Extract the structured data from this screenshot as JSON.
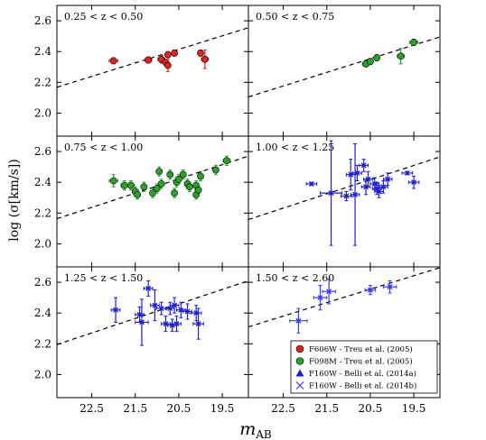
{
  "chart_data": {
    "type": "scatter",
    "xlabel": "m_AB",
    "ylabel": "log (σ[km/s])",
    "xlim": [
      23.3,
      18.9
    ],
    "ylim": [
      1.85,
      2.7
    ],
    "xticks": [
      "22.5",
      "21.5",
      "20.5",
      "19.5"
    ],
    "yticks": [
      "2.0",
      "2.2",
      "2.4",
      "2.6"
    ],
    "fit_line": {
      "style": "dashed",
      "color": "#000000"
    },
    "legend": {
      "placement": "bottom-right panel",
      "entries": [
        {
          "name": "F606W - Treu et al. (2005)",
          "marker": "circle",
          "color": "#d62728"
        },
        {
          "name": "F098M - Treu et al. (2005)",
          "marker": "circle",
          "color": "#2ca02c"
        },
        {
          "name": "F160W - Belli et al. (2014a)",
          "marker": "triangle",
          "color": "#1f1fcf"
        },
        {
          "name": "F160W - Belli et al. (2014b)",
          "marker": "x",
          "color": "#3b3bff"
        }
      ]
    },
    "panels": [
      {
        "label": "0.25 < z < 0.50",
        "line": [
          [
            23.3,
            2.168
          ],
          [
            18.9,
            2.555
          ]
        ],
        "series": [
          {
            "marker": "circle",
            "color": "#d62728",
            "points": [
              {
                "x": 22.0,
                "y": 2.34,
                "xerr": 0.1,
                "yerr": 0.02
              },
              {
                "x": 21.2,
                "y": 2.345,
                "xerr": 0.08,
                "yerr": 0.02
              },
              {
                "x": 20.9,
                "y": 2.35,
                "xerr": 0.08,
                "yerr": 0.025
              },
              {
                "x": 20.75,
                "y": 2.38,
                "xerr": 0.05,
                "yerr": 0.02
              },
              {
                "x": 20.8,
                "y": 2.33,
                "xerr": 0.05,
                "yerr": 0.02
              },
              {
                "x": 20.6,
                "y": 2.39,
                "xerr": 0.05,
                "yerr": 0.02
              },
              {
                "x": 20.75,
                "y": 2.31,
                "xerr": 0.05,
                "yerr": 0.04
              },
              {
                "x": 20.0,
                "y": 2.39,
                "xerr": 0.06,
                "yerr": 0.02
              },
              {
                "x": 19.9,
                "y": 2.35,
                "xerr": 0.08,
                "yerr": 0.06
              }
            ]
          }
        ]
      },
      {
        "label": "0.50 < z < 0.75",
        "line": [
          [
            23.3,
            2.105
          ],
          [
            18.9,
            2.495
          ]
        ],
        "series": [
          {
            "marker": "circle",
            "color": "#2ca02c",
            "points": [
              {
                "x": 20.6,
                "y": 2.32,
                "xerr": 0.08,
                "yerr": 0.02
              },
              {
                "x": 20.5,
                "y": 2.335,
                "xerr": 0.06,
                "yerr": 0.02
              },
              {
                "x": 20.35,
                "y": 2.36,
                "xerr": 0.06,
                "yerr": 0.02
              },
              {
                "x": 19.8,
                "y": 2.37,
                "xerr": 0.08,
                "yerr": 0.05
              },
              {
                "x": 19.5,
                "y": 2.46,
                "xerr": 0.1,
                "yerr": 0.02
              }
            ]
          }
        ]
      },
      {
        "label": "0.75 < z < 1.00",
        "line": [
          [
            23.3,
            2.163
          ],
          [
            18.9,
            2.57
          ]
        ],
        "series": [
          {
            "marker": "circle",
            "color": "#2ca02c",
            "points": [
              {
                "x": 22.0,
                "y": 2.41,
                "xerr": 0.1,
                "yerr": 0.04
              },
              {
                "x": 21.75,
                "y": 2.38,
                "xerr": 0.08,
                "yerr": 0.03
              },
              {
                "x": 21.6,
                "y": 2.38,
                "xerr": 0.08,
                "yerr": 0.03
              },
              {
                "x": 21.5,
                "y": 2.34,
                "xerr": 0.06,
                "yerr": 0.03
              },
              {
                "x": 21.45,
                "y": 2.32,
                "xerr": 0.06,
                "yerr": 0.03
              },
              {
                "x": 21.3,
                "y": 2.37,
                "xerr": 0.06,
                "yerr": 0.03
              },
              {
                "x": 21.1,
                "y": 2.33,
                "xerr": 0.06,
                "yerr": 0.03
              },
              {
                "x": 21.0,
                "y": 2.36,
                "xerr": 0.06,
                "yerr": 0.03
              },
              {
                "x": 20.9,
                "y": 2.39,
                "xerr": 0.06,
                "yerr": 0.03
              },
              {
                "x": 20.95,
                "y": 2.47,
                "xerr": 0.06,
                "yerr": 0.03
              },
              {
                "x": 20.7,
                "y": 2.45,
                "xerr": 0.06,
                "yerr": 0.03
              },
              {
                "x": 20.6,
                "y": 2.33,
                "xerr": 0.06,
                "yerr": 0.03
              },
              {
                "x": 20.55,
                "y": 2.4,
                "xerr": 0.06,
                "yerr": 0.03
              },
              {
                "x": 20.5,
                "y": 2.42,
                "xerr": 0.06,
                "yerr": 0.03
              },
              {
                "x": 20.4,
                "y": 2.45,
                "xerr": 0.06,
                "yerr": 0.03
              },
              {
                "x": 20.3,
                "y": 2.39,
                "xerr": 0.06,
                "yerr": 0.03
              },
              {
                "x": 20.25,
                "y": 2.37,
                "xerr": 0.06,
                "yerr": 0.03
              },
              {
                "x": 20.1,
                "y": 2.38,
                "xerr": 0.06,
                "yerr": 0.03
              },
              {
                "x": 20.0,
                "y": 2.44,
                "xerr": 0.06,
                "yerr": 0.03
              },
              {
                "x": 20.1,
                "y": 2.32,
                "xerr": 0.06,
                "yerr": 0.03
              },
              {
                "x": 20.05,
                "y": 2.35,
                "xerr": 0.06,
                "yerr": 0.03
              },
              {
                "x": 19.65,
                "y": 2.48,
                "xerr": 0.06,
                "yerr": 0.03
              },
              {
                "x": 19.4,
                "y": 2.54,
                "xerr": 0.08,
                "yerr": 0.03
              }
            ]
          }
        ]
      },
      {
        "label": "1.00 < z < 1.25",
        "line": [
          [
            23.3,
            2.158
          ],
          [
            18.9,
            2.565
          ]
        ],
        "series": [
          {
            "marker": "x",
            "color": "#1f1fcf",
            "points": [
              {
                "x": 21.85,
                "y": 2.39,
                "xerr": 0.12,
                "yerr": 0.01
              },
              {
                "x": 21.4,
                "y": 2.33,
                "xerr": 0.25,
                "yerr": 0.34
              },
              {
                "x": 21.05,
                "y": 2.31,
                "xerr": 0.12,
                "yerr": 0.03
              },
              {
                "x": 20.95,
                "y": 2.45,
                "xerr": 0.1,
                "yerr": 0.1
              },
              {
                "x": 20.85,
                "y": 2.32,
                "xerr": 0.1,
                "yerr": 0.33
              },
              {
                "x": 20.8,
                "y": 2.46,
                "xerr": 0.1,
                "yerr": 0.05
              },
              {
                "x": 20.65,
                "y": 2.51,
                "xerr": 0.1,
                "yerr": 0.04
              },
              {
                "x": 20.6,
                "y": 2.37,
                "xerr": 0.1,
                "yerr": 0.05
              },
              {
                "x": 20.55,
                "y": 2.42,
                "xerr": 0.1,
                "yerr": 0.05
              },
              {
                "x": 20.4,
                "y": 2.39,
                "xerr": 0.1,
                "yerr": 0.04
              },
              {
                "x": 20.35,
                "y": 2.36,
                "xerr": 0.1,
                "yerr": 0.04
              },
              {
                "x": 20.3,
                "y": 2.34,
                "xerr": 0.1,
                "yerr": 0.04
              },
              {
                "x": 20.2,
                "y": 2.37,
                "xerr": 0.1,
                "yerr": 0.04
              },
              {
                "x": 20.1,
                "y": 2.42,
                "xerr": 0.1,
                "yerr": 0.04
              },
              {
                "x": 19.65,
                "y": 2.46,
                "xerr": 0.12,
                "yerr": 0.01
              },
              {
                "x": 19.5,
                "y": 2.4,
                "xerr": 0.12,
                "yerr": 0.04
              }
            ]
          }
        ]
      },
      {
        "label": "1.25 < z < 1.50",
        "line": [
          [
            23.3,
            2.195
          ],
          [
            18.9,
            2.61
          ]
        ],
        "series": [
          {
            "marker": "x",
            "color": "#1f1fcf",
            "points": [
              {
                "x": 21.95,
                "y": 2.42,
                "xerr": 0.1,
                "yerr": 0.08
              },
              {
                "x": 21.4,
                "y": 2.39,
                "xerr": 0.1,
                "yerr": 0.05
              },
              {
                "x": 21.35,
                "y": 2.34,
                "xerr": 0.15,
                "yerr": 0.15
              },
              {
                "x": 21.2,
                "y": 2.56,
                "xerr": 0.1,
                "yerr": 0.05
              },
              {
                "x": 21.05,
                "y": 2.45,
                "xerr": 0.1,
                "yerr": 0.1
              },
              {
                "x": 20.9,
                "y": 2.43,
                "xerr": 0.12,
                "yerr": 0.04
              },
              {
                "x": 20.8,
                "y": 2.33,
                "xerr": 0.1,
                "yerr": 0.05
              },
              {
                "x": 20.7,
                "y": 2.43,
                "xerr": 0.1,
                "yerr": 0.04
              },
              {
                "x": 20.65,
                "y": 2.32,
                "xerr": 0.1,
                "yerr": 0.04
              },
              {
                "x": 20.6,
                "y": 2.45,
                "xerr": 0.1,
                "yerr": 0.05
              },
              {
                "x": 20.55,
                "y": 2.33,
                "xerr": 0.1,
                "yerr": 0.05
              },
              {
                "x": 20.45,
                "y": 2.42,
                "xerr": 0.1,
                "yerr": 0.05
              },
              {
                "x": 20.3,
                "y": 2.41,
                "xerr": 0.1,
                "yerr": 0.05
              },
              {
                "x": 20.1,
                "y": 2.4,
                "xerr": 0.12,
                "yerr": 0.05
              },
              {
                "x": 20.05,
                "y": 2.33,
                "xerr": 0.12,
                "yerr": 0.1
              }
            ]
          }
        ]
      },
      {
        "label": "1.50 < z < 2.60",
        "line": [
          [
            23.3,
            2.31
          ],
          [
            18.9,
            2.695
          ]
        ],
        "series": [
          {
            "marker": "x",
            "color": "#3b3bff",
            "points": [
              {
                "x": 22.15,
                "y": 2.35,
                "xerr": 0.2,
                "yerr": 0.08
              },
              {
                "x": 21.65,
                "y": 2.5,
                "xerr": 0.15,
                "yerr": 0.08
              },
              {
                "x": 21.45,
                "y": 2.54,
                "xerr": 0.15,
                "yerr": 0.08
              },
              {
                "x": 20.5,
                "y": 2.55,
                "xerr": 0.12,
                "yerr": 0.03
              },
              {
                "x": 20.05,
                "y": 2.57,
                "xerr": 0.15,
                "yerr": 0.04
              }
            ]
          }
        ]
      }
    ]
  }
}
